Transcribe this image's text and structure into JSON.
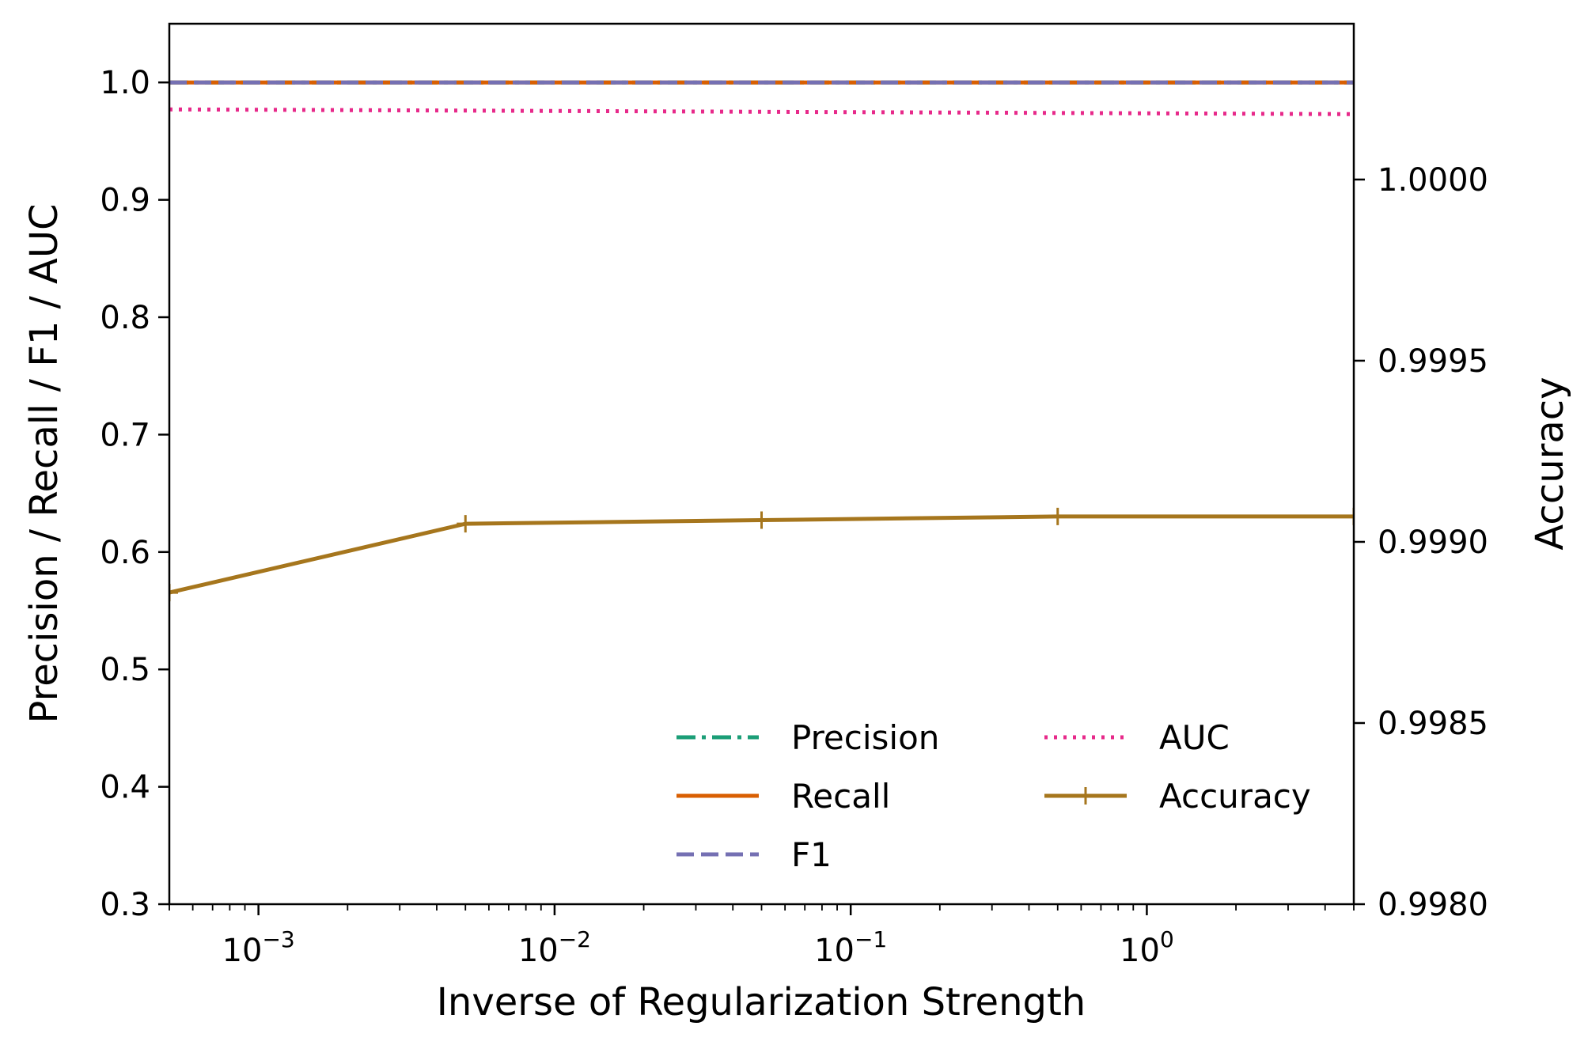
{
  "chart_data": {
    "type": "line",
    "xlabel": "Inverse of Regularization Strength",
    "ylabel_left": "Precision / Recall / F1 / AUC",
    "ylabel_right": "Accuracy",
    "xscale": "log",
    "xlim": [
      0.0005,
      5
    ],
    "ylim_left": [
      0.3,
      1.05
    ],
    "ylim_right": [
      0.998,
      1.00043
    ],
    "x_ticks": [
      {
        "value": 0.001,
        "base": "10",
        "exp": "−3"
      },
      {
        "value": 0.01,
        "base": "10",
        "exp": "−2"
      },
      {
        "value": 0.1,
        "base": "10",
        "exp": "−1"
      },
      {
        "value": 1,
        "base": "10",
        "exp": "0"
      }
    ],
    "y_left_ticks": [
      "0.3",
      "0.4",
      "0.5",
      "0.6",
      "0.7",
      "0.8",
      "0.9",
      "1.0"
    ],
    "y_right_ticks": [
      "0.9980",
      "0.9985",
      "0.9990",
      "0.9995",
      "1.0000"
    ],
    "x": [
      0.0005,
      0.005,
      0.05,
      0.5,
      5
    ],
    "series": [
      {
        "name": "Precision",
        "axis": "left",
        "color": "#1b9e77",
        "style": "dashdot",
        "marker": "none",
        "values": [
          1.0,
          1.0,
          1.0,
          1.0,
          1.0
        ]
      },
      {
        "name": "Recall",
        "axis": "left",
        "color": "#d95f02",
        "style": "solid",
        "marker": "none",
        "values": [
          1.0,
          1.0,
          1.0,
          1.0,
          1.0
        ]
      },
      {
        "name": "F1",
        "axis": "left",
        "color": "#7570b3",
        "style": "dashed",
        "marker": "none",
        "values": [
          1.0,
          1.0,
          1.0,
          1.0,
          1.0
        ]
      },
      {
        "name": "AUC",
        "axis": "left",
        "color": "#e7298a",
        "style": "dotted",
        "marker": "none",
        "values": [
          0.977,
          0.976,
          0.975,
          0.974,
          0.973
        ]
      },
      {
        "name": "Accuracy",
        "axis": "right",
        "color": "#a6761d",
        "style": "solid",
        "marker": "plus",
        "values": [
          0.99886,
          0.99905,
          0.99906,
          0.99907,
          0.99907
        ]
      }
    ],
    "legend_location": "lower right",
    "legend_columns": 2,
    "grid": false
  }
}
